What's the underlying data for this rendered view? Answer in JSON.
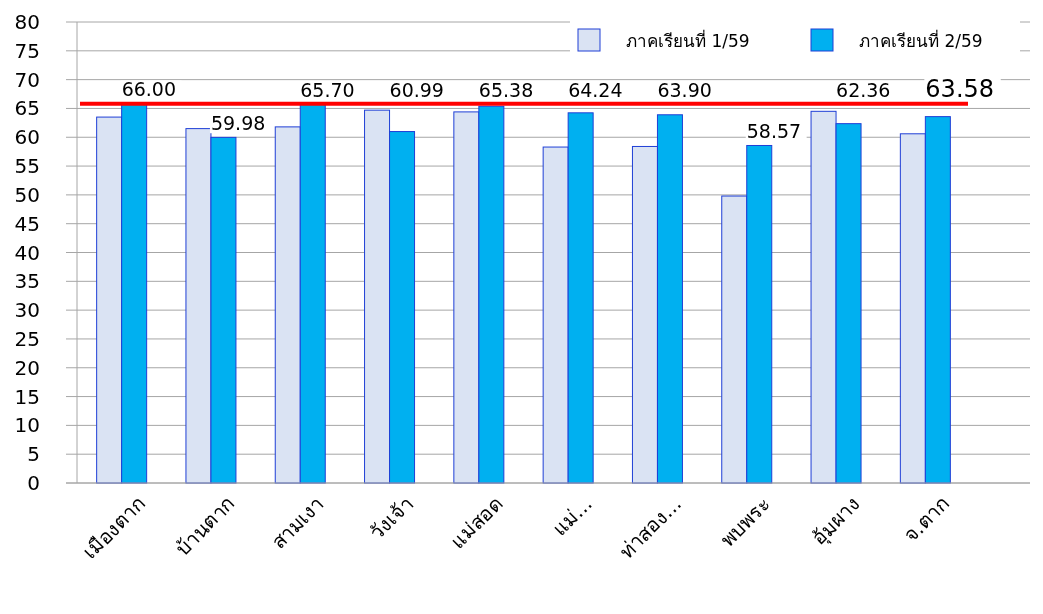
{
  "chart_data": {
    "type": "bar",
    "categories": [
      "เมืองตาก",
      "บ้านตาก",
      "สามเงา",
      "วังเจ้า",
      "แม่สอด",
      "แม่...",
      "ท่าสอง...",
      "พบพระ",
      "อุ้มผาง",
      "จ.ตาก"
    ],
    "series": [
      {
        "name": "ภาคเรียนที่ 1/59",
        "color": "#dae3f3",
        "values": [
          63.5,
          61.5,
          61.8,
          64.7,
          64.4,
          58.3,
          58.4,
          49.8,
          64.5,
          60.6
        ]
      },
      {
        "name": "ภาคเรียนที่ 2/59",
        "color": "#00b0f0",
        "values": [
          66.0,
          59.98,
          65.7,
          60.99,
          65.38,
          64.24,
          63.9,
          58.57,
          62.36,
          63.58
        ],
        "value_labels": [
          "66.00",
          "59.98",
          "65.70",
          "60.99",
          "65.38",
          "64.24",
          "63.90",
          "58.57",
          "62.36",
          "63.58"
        ]
      }
    ],
    "ylim": [
      0,
      80
    ],
    "yticks": [
      0,
      5,
      10,
      15,
      20,
      25,
      30,
      35,
      40,
      45,
      50,
      55,
      60,
      65,
      70,
      75,
      80
    ],
    "ref_lines": [
      {
        "axis": "y",
        "value": 65.8,
        "color": "#ff0000"
      }
    ],
    "grid": "y",
    "legend": "top right"
  }
}
